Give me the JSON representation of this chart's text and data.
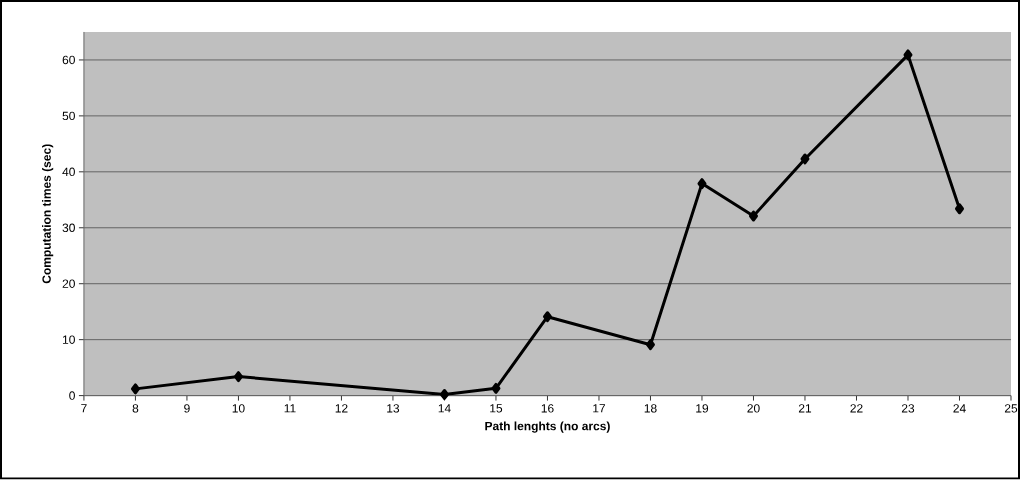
{
  "chart_data": {
    "type": "line",
    "xlabel": "Path lenghts (no arcs)",
    "ylabel": "Computation times (sec)",
    "x": [
      8,
      10,
      14,
      15,
      16,
      18,
      19,
      20,
      21,
      23,
      24
    ],
    "series": [
      {
        "color": "#000000",
        "values": [
          1.2,
          3.4,
          0.2,
          1.3,
          14.1,
          9.1,
          37.9,
          32.1,
          42.3,
          60.9,
          33.4
        ]
      }
    ],
    "xlim": [
      7,
      25
    ],
    "ylim": [
      0,
      65
    ],
    "xticks": [
      7,
      8,
      9,
      10,
      11,
      12,
      13,
      14,
      15,
      16,
      17,
      18,
      19,
      20,
      21,
      22,
      23,
      24,
      25
    ],
    "yticks": [
      0,
      10,
      20,
      30,
      40,
      50,
      60
    ],
    "grid": "y",
    "marker": "diamond",
    "line_style": "solid"
  }
}
